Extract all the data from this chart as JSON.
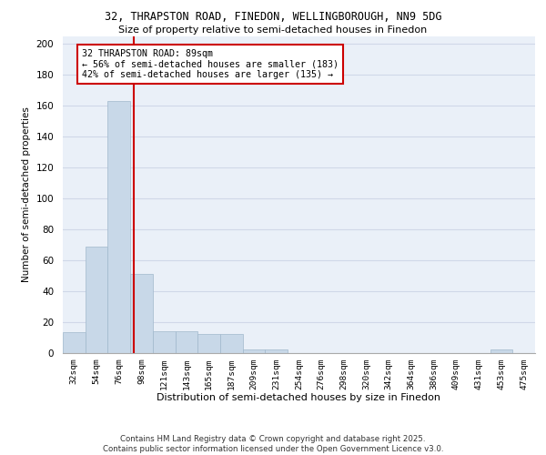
{
  "title_line1": "32, THRAPSTON ROAD, FINEDON, WELLINGBOROUGH, NN9 5DG",
  "title_line2": "Size of property relative to semi-detached houses in Finedon",
  "xlabel": "Distribution of semi-detached houses by size in Finedon",
  "ylabel": "Number of semi-detached properties",
  "categories": [
    "32sqm",
    "54sqm",
    "76sqm",
    "98sqm",
    "121sqm",
    "143sqm",
    "165sqm",
    "187sqm",
    "209sqm",
    "231sqm",
    "254sqm",
    "276sqm",
    "298sqm",
    "320sqm",
    "342sqm",
    "364sqm",
    "386sqm",
    "409sqm",
    "431sqm",
    "453sqm",
    "475sqm"
  ],
  "values": [
    13,
    69,
    163,
    51,
    14,
    14,
    12,
    12,
    2,
    2,
    0,
    0,
    0,
    0,
    0,
    0,
    0,
    0,
    0,
    2,
    0
  ],
  "bar_color": "#c8d8e8",
  "bar_edge_color": "#a0b8cc",
  "property_label": "32 THRAPSTON ROAD: 89sqm",
  "pct_smaller": 56,
  "num_smaller": 183,
  "pct_larger": 42,
  "num_larger": 135,
  "vline_color": "#cc0000",
  "vline_position": 2.636,
  "annotation_box_color": "#cc0000",
  "ylim": [
    0,
    205
  ],
  "yticks": [
    0,
    20,
    40,
    60,
    80,
    100,
    120,
    140,
    160,
    180,
    200
  ],
  "grid_color": "#d0d8e8",
  "bg_color": "#eaf0f8",
  "footer": "Contains HM Land Registry data © Crown copyright and database right 2025.\nContains public sector information licensed under the Open Government Licence v3.0."
}
